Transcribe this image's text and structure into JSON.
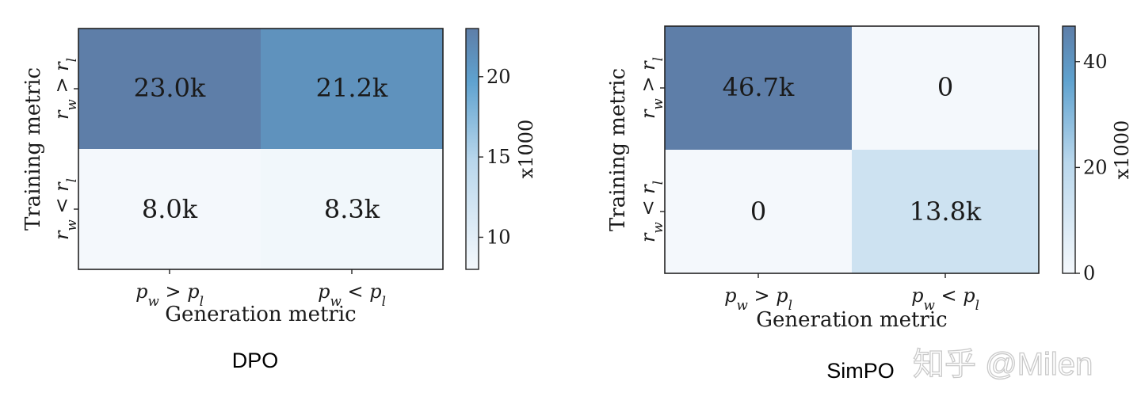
{
  "chart_data": [
    {
      "type": "heatmap",
      "title": "DPO",
      "xlabel": "Generation metric",
      "ylabel": "Training metric",
      "x_ticklabels": [
        "p_w > p_l",
        "p_w < p_l"
      ],
      "y_ticklabels": [
        "r_w > r_l",
        "r_w < r_l"
      ],
      "values": [
        [
          23.0,
          21.2
        ],
        [
          8.0,
          8.3
        ]
      ],
      "cell_labels": [
        [
          "23.0k",
          "21.2k"
        ],
        [
          "8.0k",
          "8.3k"
        ]
      ],
      "colorbar": {
        "label": "x1000",
        "min": 8.0,
        "max": 23.0,
        "ticks": [
          10,
          15,
          20
        ],
        "tick_labels": [
          "10",
          "15",
          "20"
        ]
      }
    },
    {
      "type": "heatmap",
      "title": "SimPO",
      "xlabel": "Generation metric",
      "ylabel": "Training metric",
      "x_ticklabels": [
        "p_w > p_l",
        "p_w < p_l"
      ],
      "y_ticklabels": [
        "r_w > r_l",
        "r_w < r_l"
      ],
      "values": [
        [
          46.7,
          0
        ],
        [
          0,
          13.8
        ]
      ],
      "cell_labels": [
        [
          "46.7k",
          "0"
        ],
        [
          "0",
          "13.8k"
        ]
      ],
      "colorbar": {
        "label": "x1000",
        "min": 0,
        "max": 46.7,
        "ticks": [
          0,
          20,
          40
        ],
        "tick_labels": [
          "0",
          "20",
          "40"
        ]
      }
    }
  ],
  "colors": {
    "low": "#f4f8fc",
    "mid": "#5fa2cf",
    "high": "#5e7ea8",
    "frame": "#222222"
  },
  "watermark": "知乎 @Milen"
}
